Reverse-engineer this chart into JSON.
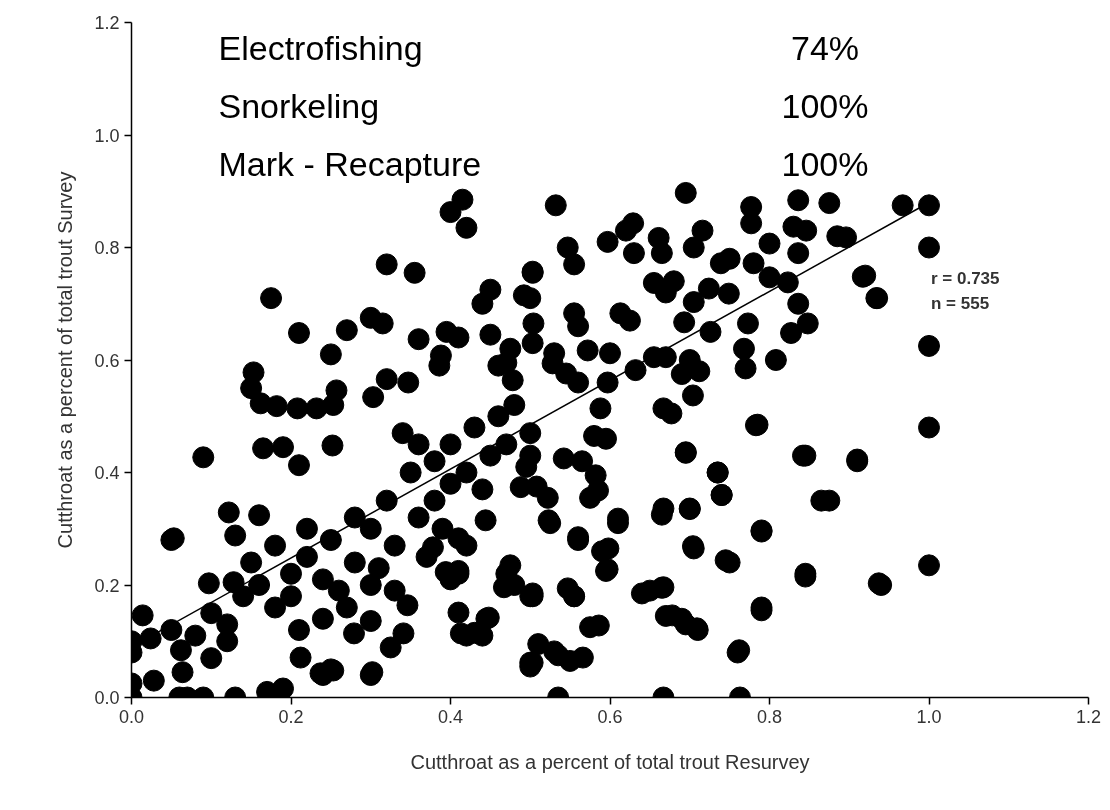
{
  "chart_data": {
    "type": "scatter",
    "xlabel": "Cutthroat as a percent of total trout Resurvey",
    "ylabel": "Cutthroat as a percent of total trout Survey",
    "xlim": [
      0,
      1.2
    ],
    "ylim": [
      0,
      1.2
    ],
    "xticks": [
      {
        "value": 0,
        "label": "0.0"
      },
      0.2,
      0.4,
      0.6,
      0.8,
      {
        "value": 1,
        "label": "1.0"
      },
      1.2
    ],
    "yticks": [
      {
        "value": 0,
        "label": "0.0"
      },
      0.2,
      0.4,
      0.6,
      0.8,
      {
        "value": 1,
        "label": "1.0"
      },
      1.2
    ],
    "grid": false,
    "annotations": [
      "r = 0.735",
      "n = 555",
      "Electrofishing",
      "74%",
      "Snorkeling",
      "100%",
      "Mark - Recapture",
      "100%"
    ],
    "series": [
      {
        "color": "#000000",
        "marker": "circle",
        "x": [
          0.0,
          0.06,
          0.07,
          0.09,
          0.13,
          0.19,
          0.535,
          0.667,
          0.763,
          1.0,
          1.0,
          1.0,
          1.0,
          1.0,
          0.94,
          0.91,
          0.935,
          0.92,
          0.885,
          0.865,
          0.845,
          0.845,
          0.79,
          0.79,
          0.785,
          0.76,
          0.75,
          0.74,
          0.735,
          0.705,
          0.7,
          0.695,
          0.71,
          0.695,
          0.67,
          0.665,
          0.665,
          0.64,
          0.61,
          0.595,
          0.59,
          0.575,
          0.555,
          0.56,
          0.535,
          0.55,
          0.5,
          0.51,
          0.525,
          0.47,
          0.48,
          0.44,
          0.445,
          0.42,
          0.41,
          0.42,
          0.3,
          0.25,
          0.24,
          0.17,
          0.05,
          0.415,
          0.4,
          0.42,
          0.32,
          0.355,
          0.175,
          0.21,
          0.27,
          0.3,
          0.315,
          0.25,
          0.36,
          0.395,
          0.41,
          0.45,
          0.45,
          0.44,
          0.503,
          0.5,
          0.153,
          0.15,
          0.162,
          0.182,
          0.208,
          0.232,
          0.253,
          0.257,
          0.303,
          0.32,
          0.347,
          0.388,
          0.386,
          0.46,
          0.47,
          0.478,
          0.475,
          0.09,
          0.165,
          0.19,
          0.21,
          0.252,
          0.053,
          0.122,
          0.13,
          0.16,
          0.097,
          0.128,
          0.014,
          0.0,
          0.0,
          0.024,
          0.062,
          0.0,
          0.028,
          0.064,
          0.237,
          0.253,
          0.302,
          0.212,
          0.325,
          0.341,
          0.279,
          0.3,
          0.346,
          0.378,
          0.394,
          0.4,
          0.41,
          0.41,
          0.413,
          0.43,
          0.448,
          0.475,
          0.467,
          0.5,
          0.5,
          0.444,
          0.41,
          0.488,
          0.495,
          0.05,
          0.08,
          0.1,
          0.12,
          0.14,
          0.16,
          0.18,
          0.2,
          0.2,
          0.22,
          0.24,
          0.25,
          0.26,
          0.28,
          0.3,
          0.3,
          0.32,
          0.33,
          0.35,
          0.36,
          0.38,
          0.38,
          0.4,
          0.4,
          0.42,
          0.43,
          0.44,
          0.45,
          0.46,
          0.47,
          0.48,
          0.5,
          0.36,
          0.34,
          0.28,
          0.22,
          0.18,
          0.15,
          0.12,
          0.1,
          0.21,
          0.24,
          0.27,
          0.31,
          0.33,
          0.37,
          0.39,
          0.532,
          0.695,
          0.777,
          0.836,
          0.875,
          0.967,
          0.896,
          0.917,
          0.934,
          0.547,
          0.555,
          0.503,
          0.597,
          0.629,
          0.62,
          0.63,
          0.661,
          0.665,
          0.716,
          0.705,
          0.739,
          0.75,
          0.777,
          0.8,
          0.83,
          0.836,
          0.846,
          0.78,
          0.8,
          0.823,
          0.836,
          0.848,
          0.827,
          0.808,
          0.773,
          0.768,
          0.77,
          0.749,
          0.724,
          0.693,
          0.7,
          0.69,
          0.704,
          0.712,
          0.726,
          0.655,
          0.67,
          0.667,
          0.677,
          0.783,
          0.632,
          0.597,
          0.588,
          0.555,
          0.56,
          0.572,
          0.6,
          0.53,
          0.503,
          0.504,
          0.492,
          0.613,
          0.625,
          0.655,
          0.67,
          0.68,
          0.705,
          0.528,
          0.545,
          0.56,
          0.595,
          0.58,
          0.5,
          0.542,
          0.565,
          0.582,
          0.585,
          0.575,
          0.522,
          0.508,
          0.523,
          0.56,
          0.61,
          0.598,
          0.597,
          0.695,
          0.735,
          0.74,
          0.7,
          0.667,
          0.704,
          0.745,
          0.79,
          0.842,
          0.91,
          0.875,
          0.845,
          0.937,
          0.79,
          0.762,
          0.667,
          0.65,
          0.678,
          0.69,
          0.709,
          0.586,
          0.503,
          0.503,
          0.547,
          0.555,
          0.53,
          0.503,
          0.566
        ],
        "values": [
          0.0,
          0.0,
          0.0,
          0.0,
          0.0,
          0.016,
          0.0,
          0.0,
          0.0,
          0.875,
          0.8,
          0.625,
          0.48,
          0.235,
          0.2,
          0.42,
          0.71,
          0.75,
          0.82,
          0.35,
          0.43,
          0.215,
          0.295,
          0.155,
          0.485,
          0.08,
          0.24,
          0.36,
          0.4,
          0.265,
          0.335,
          0.435,
          0.12,
          0.13,
          0.145,
          0.195,
          0.325,
          0.185,
          0.31,
          0.225,
          0.26,
          0.125,
          0.18,
          0.28,
          0.075,
          0.065,
          0.055,
          0.095,
          0.31,
          0.22,
          0.2,
          0.11,
          0.14,
          0.11,
          0.22,
          0.27,
          0.04,
          0.05,
          0.04,
          0.01,
          0.28,
          0.885,
          0.863,
          0.835,
          0.77,
          0.755,
          0.71,
          0.648,
          0.653,
          0.675,
          0.665,
          0.61,
          0.637,
          0.65,
          0.64,
          0.645,
          0.725,
          0.7,
          0.755,
          0.71,
          0.578,
          0.55,
          0.523,
          0.518,
          0.514,
          0.514,
          0.52,
          0.546,
          0.534,
          0.566,
          0.56,
          0.608,
          0.59,
          0.59,
          0.595,
          0.564,
          0.62,
          0.427,
          0.443,
          0.445,
          0.413,
          0.448,
          0.283,
          0.329,
          0.288,
          0.324,
          0.203,
          0.205,
          0.146,
          0.1,
          0.08,
          0.105,
          0.084,
          0.025,
          0.03,
          0.045,
          0.043,
          0.048,
          0.045,
          0.071,
          0.089,
          0.114,
          0.114,
          0.136,
          0.164,
          0.267,
          0.223,
          0.21,
          0.225,
          0.151,
          0.114,
          0.115,
          0.142,
          0.235,
          0.196,
          0.18,
          0.062,
          0.315,
          0.283,
          0.374,
          0.41,
          0.12,
          0.11,
          0.15,
          0.13,
          0.18,
          0.2,
          0.16,
          0.22,
          0.18,
          0.25,
          0.21,
          0.28,
          0.19,
          0.24,
          0.3,
          0.2,
          0.35,
          0.27,
          0.4,
          0.32,
          0.42,
          0.35,
          0.45,
          0.38,
          0.4,
          0.48,
          0.37,
          0.43,
          0.5,
          0.45,
          0.52,
          0.47,
          0.45,
          0.47,
          0.32,
          0.3,
          0.27,
          0.24,
          0.1,
          0.07,
          0.12,
          0.14,
          0.16,
          0.23,
          0.19,
          0.25,
          0.3,
          0.875,
          0.897,
          0.872,
          0.884,
          0.879,
          0.875,
          0.818,
          0.748,
          0.71,
          0.8,
          0.77,
          0.757,
          0.81,
          0.843,
          0.83,
          0.79,
          0.817,
          0.79,
          0.83,
          0.8,
          0.772,
          0.78,
          0.843,
          0.807,
          0.837,
          0.79,
          0.83,
          0.772,
          0.747,
          0.738,
          0.7,
          0.665,
          0.648,
          0.6,
          0.665,
          0.62,
          0.585,
          0.718,
          0.727,
          0.667,
          0.6,
          0.575,
          0.537,
          0.58,
          0.65,
          0.605,
          0.605,
          0.514,
          0.505,
          0.484,
          0.582,
          0.56,
          0.514,
          0.683,
          0.66,
          0.617,
          0.612,
          0.612,
          0.63,
          0.665,
          0.715,
          0.683,
          0.67,
          0.737,
          0.72,
          0.74,
          0.703,
          0.594,
          0.576,
          0.56,
          0.46,
          0.465,
          0.43,
          0.425,
          0.42,
          0.395,
          0.368,
          0.355,
          0.355,
          0.375,
          0.315,
          0.285,
          0.318,
          0.265,
          0.228,
          0.436,
          0.4,
          0.36,
          0.336,
          0.336,
          0.269,
          0.244,
          0.297,
          0.43,
          0.423,
          0.35,
          0.22,
          0.203,
          0.16,
          0.084,
          0.196,
          0.19,
          0.146,
          0.14,
          0.123,
          0.128,
          0.185,
          0.18,
          0.194,
          0.18,
          0.082,
          0.062,
          0.071
        ]
      },
      {
        "type": "line",
        "color": "#000000",
        "line_style": "solid",
        "x": [
          0,
          1.0
        ],
        "values": [
          0.09,
          0.88
        ]
      }
    ]
  }
}
